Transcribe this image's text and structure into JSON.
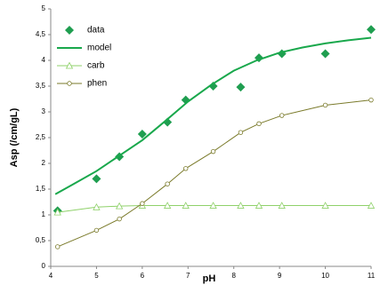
{
  "chart_data": {
    "type": "line",
    "x_label": "pH",
    "y_label": "Asp (/cm/gL)",
    "xlim": [
      4,
      11
    ],
    "ylim": [
      0,
      5
    ],
    "xticks": [
      4,
      5,
      6,
      7,
      8,
      9,
      10,
      11
    ],
    "yticks": [
      0,
      {
        "value": 0.5,
        "label": "0,5"
      },
      1,
      {
        "value": 1.5,
        "label": "1,5"
      },
      2,
      {
        "value": 2.5,
        "label": "2,5"
      },
      3,
      {
        "value": 3.5,
        "label": "3,5"
      },
      4,
      {
        "value": 4.5,
        "label": "4,5"
      },
      5
    ],
    "grid": false,
    "legend": "upper left",
    "series": [
      {
        "name": "data",
        "color": "#1f9e50",
        "marker": "diamond",
        "line": false,
        "x": [
          4.15,
          5.0,
          5.5,
          6.0,
          6.55,
          6.95,
          7.55,
          8.15,
          8.55,
          9.05,
          10.0,
          11.0
        ],
        "values": [
          1.08,
          1.7,
          2.13,
          2.57,
          2.8,
          3.23,
          3.5,
          3.48,
          4.05,
          4.13,
          4.13,
          4.6
        ]
      },
      {
        "name": "model",
        "color": "#19a84c",
        "marker": "none",
        "line": true,
        "x": [
          4.1,
          4.5,
          5.0,
          5.5,
          6.0,
          6.5,
          7.0,
          7.5,
          8.0,
          8.5,
          9.0,
          9.5,
          10.0,
          10.5,
          11.0
        ],
        "values": [
          1.4,
          1.6,
          1.85,
          2.15,
          2.45,
          2.82,
          3.2,
          3.52,
          3.8,
          4.0,
          4.15,
          4.25,
          4.33,
          4.39,
          4.44
        ]
      },
      {
        "name": "carb",
        "color": "#8fd16a",
        "marker": "triangle",
        "line": true,
        "x": [
          4.15,
          5.0,
          5.5,
          6.0,
          6.55,
          6.95,
          7.55,
          8.15,
          8.55,
          9.05,
          10.0,
          11.0
        ],
        "values": [
          1.05,
          1.15,
          1.17,
          1.18,
          1.18,
          1.18,
          1.18,
          1.18,
          1.18,
          1.18,
          1.18,
          1.18
        ]
      },
      {
        "name": "phen",
        "color": "#7a7a2a",
        "marker": "circle",
        "line": true,
        "x": [
          4.15,
          5.0,
          5.5,
          6.0,
          6.55,
          6.95,
          7.55,
          8.15,
          8.55,
          9.05,
          10.0,
          11.0
        ],
        "values": [
          0.38,
          0.7,
          0.92,
          1.22,
          1.6,
          1.9,
          2.23,
          2.6,
          2.77,
          2.93,
          3.13,
          3.23
        ]
      }
    ]
  }
}
